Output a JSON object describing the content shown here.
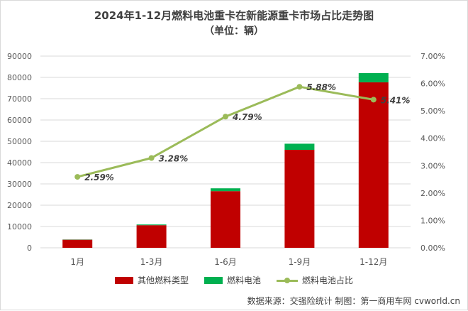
{
  "chart_data": {
    "type": "bar",
    "title": "2024年1-12月燃料电池重卡在新能源重卡市场占比走势图",
    "subtitle": "（单位：辆）",
    "categories": [
      "1月",
      "1-3月",
      "1-6月",
      "1-9月",
      "1-12月"
    ],
    "series": [
      {
        "name": "其他燃料类型",
        "kind": "bar",
        "stack": "total",
        "axis": "left",
        "color": "#c00000",
        "values": [
          3800,
          10600,
          26600,
          46000,
          77700
        ]
      },
      {
        "name": "燃料电池",
        "kind": "bar",
        "stack": "total",
        "axis": "left",
        "color": "#00b050",
        "values": [
          100,
          350,
          1330,
          2870,
          4300
        ]
      },
      {
        "name": "燃料电池占比",
        "kind": "line",
        "axis": "right",
        "color": "#9bbb59",
        "values": [
          2.59,
          3.28,
          4.79,
          5.88,
          5.41
        ],
        "labels": [
          "2.59%",
          "3.28%",
          "4.79%",
          "5.88%",
          "5.41%"
        ]
      }
    ],
    "y_left": {
      "min": 0,
      "max": 90000,
      "step": 10000,
      "ticks": [
        "0",
        "10000",
        "20000",
        "30000",
        "40000",
        "50000",
        "60000",
        "70000",
        "80000",
        "90000"
      ]
    },
    "y_right": {
      "min": 0,
      "max": 7,
      "step": 1,
      "ticks": [
        "0.00%",
        "1.00%",
        "2.00%",
        "3.00%",
        "4.00%",
        "5.00%",
        "6.00%",
        "7.00%"
      ]
    },
    "grid": true,
    "legend_position": "bottom"
  },
  "source_text": "数据来源：交强险统计   制图：第一商用车网 cvworld.cn"
}
